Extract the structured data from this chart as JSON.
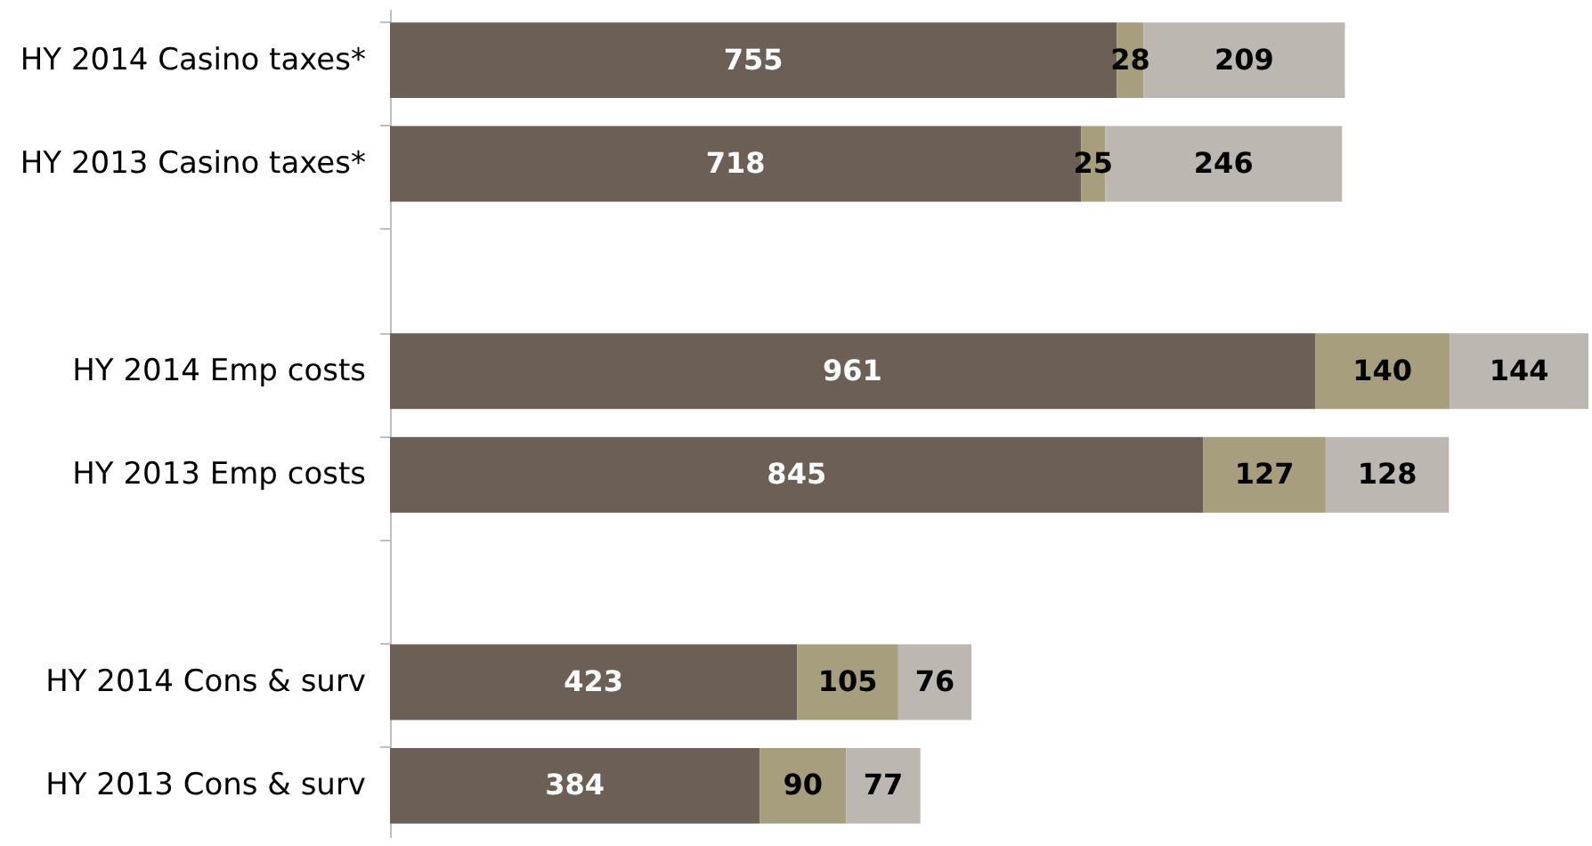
{
  "chart_data": {
    "type": "bar",
    "orientation": "horizontal",
    "stacked": true,
    "data_labels": true,
    "grid": false,
    "tick_labels": "y",
    "categories": [
      "HY 2014 Casino taxes*",
      "HY 2013 Casino taxes*",
      null,
      "HY 2014 Emp costs",
      "HY 2013 Emp costs",
      null,
      "HY 2014 Cons & surv",
      "HY 2013 Cons & surv"
    ],
    "series": [
      {
        "color": "#6b5f56",
        "values": [
          755,
          718,
          null,
          961,
          845,
          null,
          423,
          384
        ]
      },
      {
        "color": "#a69e7c",
        "values": [
          28,
          25,
          null,
          140,
          127,
          null,
          105,
          90
        ]
      },
      {
        "color": "#bdb7b2",
        "values": [
          209,
          246,
          null,
          144,
          128,
          null,
          76,
          77
        ]
      }
    ]
  }
}
